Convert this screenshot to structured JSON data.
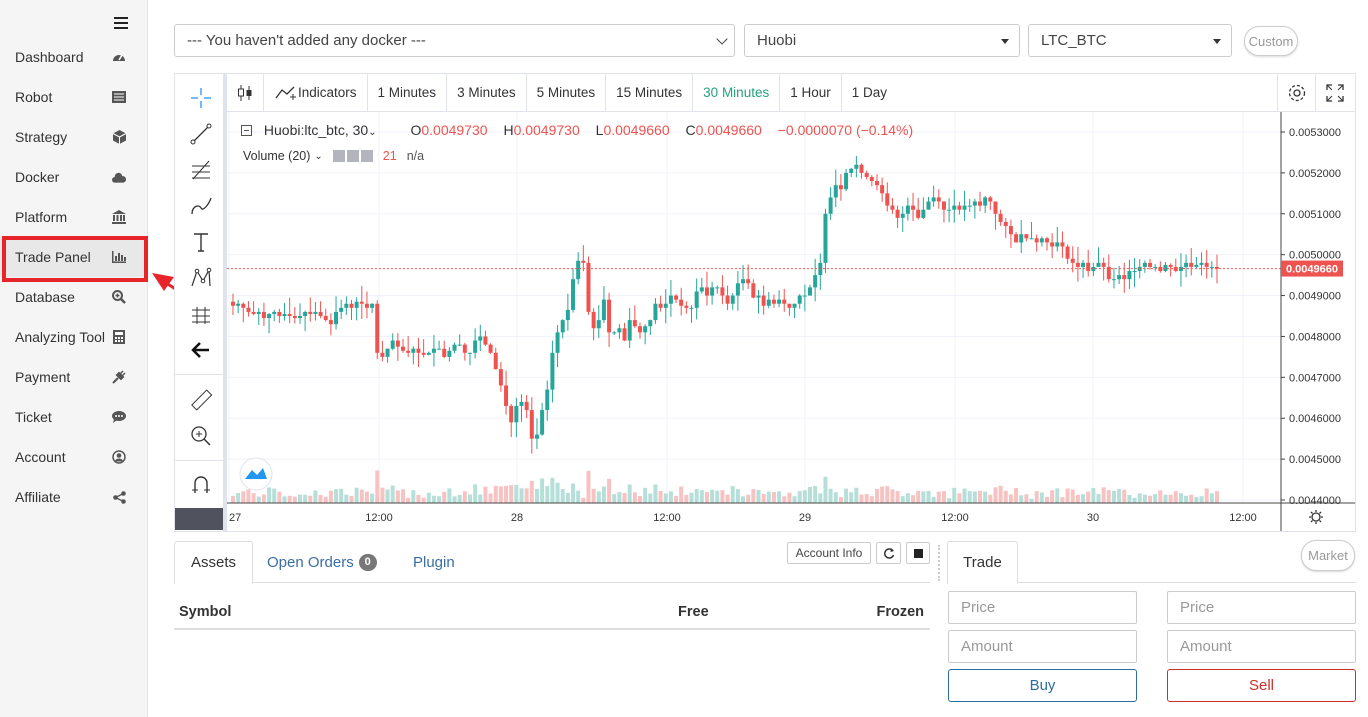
{
  "sidebar": {
    "items": [
      {
        "label": "Dashboard",
        "icon": "dashboard-icon"
      },
      {
        "label": "Robot",
        "icon": "robot-icon"
      },
      {
        "label": "Strategy",
        "icon": "strategy-cube-icon"
      },
      {
        "label": "Docker",
        "icon": "cloud-icon"
      },
      {
        "label": "Platform",
        "icon": "bank-icon"
      },
      {
        "label": "Trade Panel",
        "icon": "bar-chart-icon"
      },
      {
        "label": "Database",
        "icon": "search-plus-icon"
      },
      {
        "label": "Analyzing Tool",
        "icon": "calculator-icon"
      },
      {
        "label": "Payment",
        "icon": "plug-icon"
      },
      {
        "label": "Ticket",
        "icon": "comment-icon"
      },
      {
        "label": "Account",
        "icon": "user-circle-icon"
      },
      {
        "label": "Affiliate",
        "icon": "share-icon"
      }
    ]
  },
  "top": {
    "docker": "--- You haven't added any docker ---",
    "exchange": "Huobi",
    "pair": "LTC_BTC",
    "custom": "Custom"
  },
  "chart_toolbar": {
    "indicators": "Indicators",
    "intervals": [
      "1 Minutes",
      "3 Minutes",
      "5 Minutes",
      "15 Minutes",
      "30 Minutes",
      "1 Hour",
      "1 Day"
    ],
    "active_interval": "30 Minutes"
  },
  "legend": {
    "symbol": "Huobi:ltc_btc, 30",
    "o_label": "O",
    "o": "0.0049730",
    "h_label": "H",
    "h": "0.0049730",
    "l_label": "L",
    "l": "0.0049660",
    "c_label": "C",
    "c": "0.0049660",
    "change": "−0.0000070 (−0.14%)",
    "volume": "Volume (20)",
    "vol_value": "21",
    "vol_na": "n/a"
  },
  "colors": {
    "up": "#26a69a",
    "down": "#ef5350",
    "active": "#26a17b",
    "highlight": "#e8242b"
  },
  "chart_data": {
    "type": "candlestick",
    "y_ticks": [
      "0.0053000",
      "0.0052000",
      "0.0051000",
      "0.0050000",
      "0.0049000",
      "0.0048000",
      "0.0047000",
      "0.0046000",
      "0.0045000",
      "0.0044000"
    ],
    "ylim": [
      0.0044,
      0.00532
    ],
    "last_price": "0.0049660",
    "x_ticks": [
      "27",
      "12:00",
      "28",
      "12:00",
      "29",
      "12:00",
      "30",
      "12:00"
    ],
    "close_series": [
      0.004875,
      0.00488,
      0.00487,
      0.00486,
      0.004855,
      0.00486,
      0.004845,
      0.004855,
      0.00486,
      0.00485,
      0.004855,
      0.00485,
      0.004845,
      0.00485,
      0.00486,
      0.004855,
      0.00486,
      0.00485,
      0.00484,
      0.00483,
      0.00486,
      0.00487,
      0.00488,
      0.00487,
      0.004885,
      0.00488,
      0.00487,
      0.00488,
      0.00476,
      0.00475,
      0.00477,
      0.00479,
      0.004775,
      0.004765,
      0.00476,
      0.00477,
      0.00476,
      0.004755,
      0.00476,
      0.00477,
      0.00477,
      0.00475,
      0.004765,
      0.00478,
      0.00478,
      0.00476,
      0.00476,
      0.00479,
      0.0048,
      0.00478,
      0.00476,
      0.00472,
      0.00468,
      0.00463,
      0.00459,
      0.00463,
      0.00464,
      0.00462,
      0.00455,
      0.00456,
      0.00462,
      0.00467,
      0.00476,
      0.00481,
      0.00484,
      0.004865,
      0.00494,
      0.004985,
      0.00498,
      0.00486,
      0.00482,
      0.00484,
      0.00489,
      0.00481,
      0.00481,
      0.00482,
      0.00479,
      0.00484,
      0.004825,
      0.00481,
      0.004825,
      0.00484,
      0.00488,
      0.00487,
      0.00488,
      0.0049,
      0.00489,
      0.004875,
      0.00487,
      0.00487,
      0.00491,
      0.00492,
      0.0049,
      0.00492,
      0.00492,
      0.0049,
      0.00488,
      0.0049,
      0.00493,
      0.00494,
      0.00493,
      0.004895,
      0.0049,
      0.004875,
      0.00489,
      0.00488,
      0.00489,
      0.00488,
      0.00487,
      0.00488,
      0.0049,
      0.0049,
      0.00492,
      0.00495,
      0.00498,
      0.0051,
      0.00514,
      0.00517,
      0.00516,
      0.0052,
      0.00521,
      0.00522,
      0.0052,
      0.00519,
      0.00518,
      0.00517,
      0.00515,
      0.00512,
      0.00511,
      0.00509,
      0.0051,
      0.00512,
      0.00511,
      0.00509,
      0.00511,
      0.00513,
      0.00514,
      0.00513,
      0.00511,
      0.00511,
      0.00512,
      0.00511,
      0.00512,
      0.00512,
      0.00513,
      0.00512,
      0.00514,
      0.00513,
      0.0051,
      0.00508,
      0.00507,
      0.00505,
      0.00503,
      0.00505,
      0.00504,
      0.00504,
      0.00503,
      0.00504,
      0.00503,
      0.00502,
      0.00503,
      0.00502,
      0.00499,
      0.00498,
      0.00497,
      0.00498,
      0.00496,
      0.00497,
      0.00498,
      0.00497,
      0.00494,
      0.00494,
      0.00495,
      0.00494,
      0.00496,
      0.00496,
      0.00497,
      0.00498,
      0.00497,
      0.00497,
      0.00496,
      0.004975,
      0.00497,
      0.00496,
      0.00497,
      0.00498,
      0.00497,
      0.004975,
      0.00498,
      0.00497,
      0.00497,
      0.004966
    ]
  },
  "bottom": {
    "tabs": {
      "assets": "Assets",
      "open_orders": "Open Orders",
      "open_orders_count": "0",
      "plugin": "Plugin"
    },
    "account_info": "Account Info",
    "columns": {
      "symbol": "Symbol",
      "free": "Free",
      "frozen": "Frozen"
    }
  },
  "trade": {
    "tab": "Trade",
    "market": "Market",
    "price_ph": "Price",
    "amount_ph": "Amount",
    "buy": "Buy",
    "sell": "Sell"
  }
}
